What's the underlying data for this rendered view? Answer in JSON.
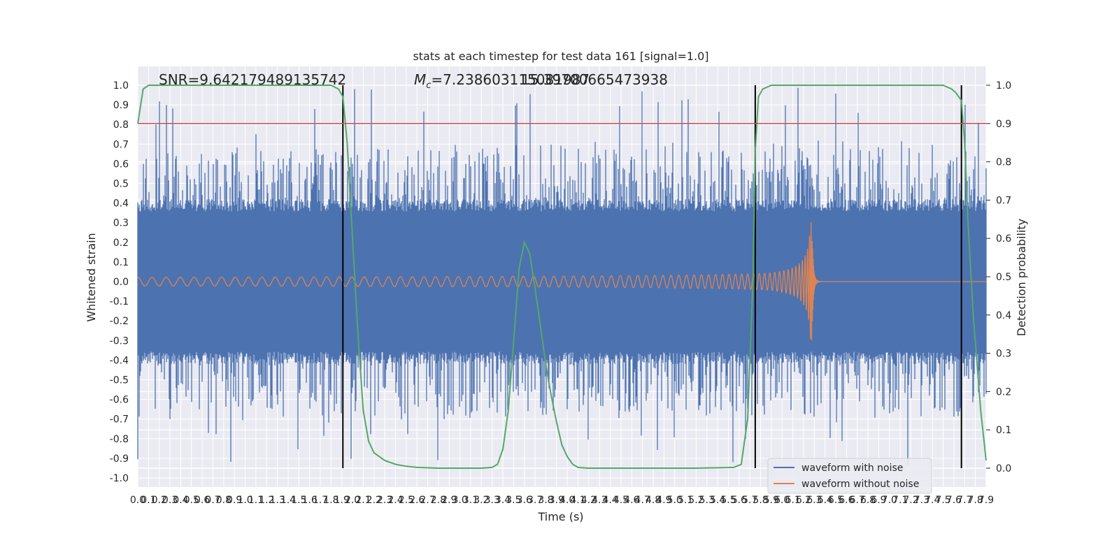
{
  "chart_data": {
    "type": "line",
    "title": "stats at each timestep for test data 161 [signal=1.0]",
    "xlabel": "Time (s)",
    "ylabel": "Whitened strain",
    "ylabel_right": "Detection probability",
    "xlim": [
      0.0,
      7.9
    ],
    "ylim": [
      -1.1,
      1.05
    ],
    "ylim_right": [
      -0.05,
      1.03
    ],
    "x_ticks": [
      "0.0",
      "0.1",
      "0.2",
      "0.3",
      "0.4",
      "0.5",
      "0.6",
      "0.7",
      "0.8",
      "0.9",
      "1.0",
      "1.1",
      "1.2",
      "1.3",
      "1.4",
      "1.5",
      "1.6",
      "1.7",
      "1.8",
      "1.9",
      "2.0",
      "2.1",
      "2.2",
      "2.3",
      "2.4",
      "2.5",
      "2.6",
      "2.7",
      "2.8",
      "2.9",
      "3.0",
      "3.1",
      "3.2",
      "3.3",
      "3.4",
      "3.5",
      "3.6",
      "3.7",
      "3.8",
      "3.9",
      "4.0",
      "4.1",
      "4.2",
      "4.3",
      "4.4",
      "4.5",
      "4.6",
      "4.7",
      "4.8",
      "4.9",
      "5.0",
      "5.1",
      "5.2",
      "5.3",
      "5.4",
      "5.5",
      "5.6",
      "5.7",
      "5.8",
      "5.9",
      "6.0",
      "6.1",
      "6.2",
      "6.3",
      "6.4",
      "6.5",
      "6.6",
      "6.7",
      "6.8",
      "6.9",
      "7.0",
      "7.1",
      "7.2",
      "7.3",
      "7.4",
      "7.5",
      "7.6",
      "7.7",
      "7.8",
      "7.9"
    ],
    "y_ticks": [
      "1.0",
      "0.9",
      "0.8",
      "0.7",
      "0.6",
      "0.5",
      "0.4",
      "0.3",
      "0.2",
      "0.1",
      "0.0",
      "-0.1",
      "-0.2",
      "-0.3",
      "-0.4",
      "-0.5",
      "-0.6",
      "-0.7",
      "-0.8",
      "-0.9",
      "-1.0"
    ],
    "y_ticks_right": [
      "1.0",
      "0.9",
      "0.8",
      "0.7",
      "0.6",
      "0.5",
      "0.4",
      "0.3",
      "0.2",
      "0.1",
      "0.0"
    ],
    "annotations": {
      "snr": "SNR=9.642179489135742",
      "mc": "=7.238603115081987",
      "mc_symbol": "M",
      "mc_subscript": "c",
      "overlap": "15.39700665473938"
    },
    "threshold": 0.9,
    "event_markers_x": [
      1.91,
      5.75,
      7.67
    ],
    "merger_time": 6.28,
    "noise_envelope": {
      "typical_abs": 0.42,
      "peak_max": 1.0,
      "peak_min": -0.95
    },
    "probability": {
      "x": [
        0.0,
        0.05,
        0.1,
        0.2,
        0.5,
        1.0,
        1.5,
        1.8,
        1.87,
        1.91,
        1.95,
        2.0,
        2.05,
        2.1,
        2.15,
        2.2,
        2.3,
        2.4,
        2.5,
        2.6,
        2.8,
        3.0,
        3.2,
        3.3,
        3.35,
        3.4,
        3.45,
        3.5,
        3.55,
        3.6,
        3.65,
        3.7,
        3.75,
        3.8,
        3.85,
        3.9,
        3.95,
        4.0,
        4.05,
        4.1,
        4.2,
        4.4,
        4.8,
        5.2,
        5.55,
        5.62,
        5.68,
        5.73,
        5.75,
        5.78,
        5.82,
        5.9,
        6.5,
        7.2,
        7.5,
        7.58,
        7.62,
        7.67,
        7.7,
        7.73,
        7.78,
        7.85,
        7.9
      ],
      "y": [
        0.9,
        0.99,
        1.0,
        1.0,
        1.0,
        1.0,
        1.0,
        1.0,
        0.99,
        0.97,
        0.85,
        0.6,
        0.35,
        0.15,
        0.07,
        0.04,
        0.02,
        0.01,
        0.005,
        0.002,
        0.0,
        0.0,
        0.0,
        0.002,
        0.01,
        0.05,
        0.15,
        0.33,
        0.52,
        0.59,
        0.56,
        0.47,
        0.37,
        0.27,
        0.19,
        0.12,
        0.06,
        0.03,
        0.01,
        0.002,
        0.0,
        0.0,
        0.0,
        0.0,
        0.002,
        0.01,
        0.13,
        0.5,
        0.83,
        0.97,
        0.99,
        1.0,
        1.0,
        1.0,
        1.0,
        0.99,
        0.98,
        0.96,
        0.85,
        0.65,
        0.4,
        0.15,
        0.02
      ]
    },
    "series": [
      {
        "name": "waveform with noise",
        "color": "#4c72b0"
      },
      {
        "name": "waveform without noise",
        "color": "#dd8452"
      }
    ],
    "colors": {
      "probability": "#55a868",
      "threshold": "#c44e52",
      "markers": "#000000",
      "background": "#eaeaf2",
      "grid": "#ffffff"
    },
    "legend_position": "lower-right",
    "grid": true
  }
}
